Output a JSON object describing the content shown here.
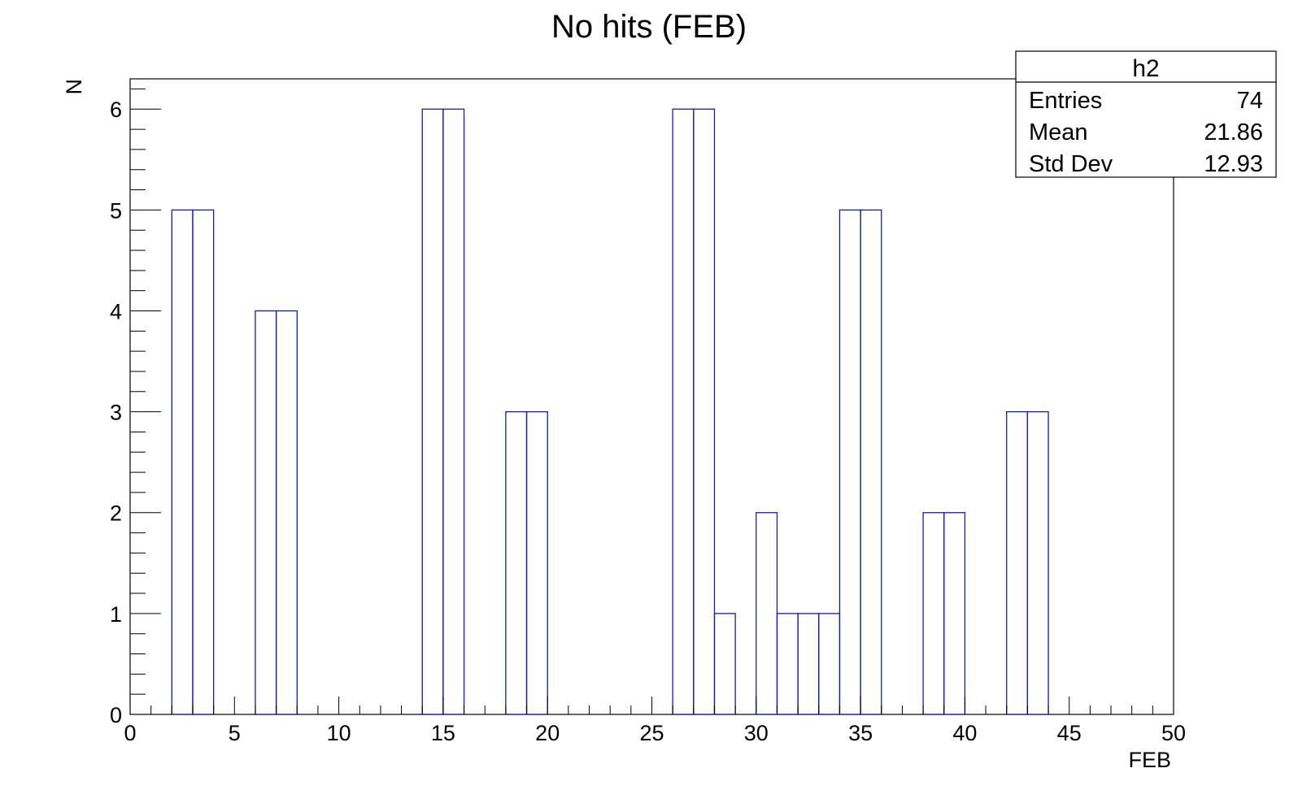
{
  "chart_data": {
    "type": "histogram",
    "title": "No hits (FEB)",
    "xlabel": "FEB",
    "ylabel": "N",
    "xlim": [
      0,
      50
    ],
    "ylim": [
      0,
      6.3
    ],
    "bin_width": 1,
    "x_ticks": [
      "0",
      "5",
      "10",
      "15",
      "20",
      "25",
      "30",
      "35",
      "40",
      "45",
      "50"
    ],
    "y_ticks": [
      "0",
      "1",
      "2",
      "3",
      "4",
      "5",
      "6"
    ],
    "bins": [
      {
        "low": 2,
        "high": 3,
        "value": 5
      },
      {
        "low": 3,
        "high": 4,
        "value": 5
      },
      {
        "low": 6,
        "high": 7,
        "value": 4
      },
      {
        "low": 7,
        "high": 8,
        "value": 4
      },
      {
        "low": 14,
        "high": 15,
        "value": 6
      },
      {
        "low": 15,
        "high": 16,
        "value": 6
      },
      {
        "low": 18,
        "high": 19,
        "value": 3
      },
      {
        "low": 19,
        "high": 20,
        "value": 3
      },
      {
        "low": 26,
        "high": 27,
        "value": 6
      },
      {
        "low": 27,
        "high": 28,
        "value": 6
      },
      {
        "low": 28,
        "high": 29,
        "value": 1
      },
      {
        "low": 30,
        "high": 31,
        "value": 2
      },
      {
        "low": 31,
        "high": 32,
        "value": 1
      },
      {
        "low": 32,
        "high": 33,
        "value": 1
      },
      {
        "low": 33,
        "high": 34,
        "value": 1
      },
      {
        "low": 34,
        "high": 35,
        "value": 5
      },
      {
        "low": 35,
        "high": 36,
        "value": 5
      },
      {
        "low": 38,
        "high": 39,
        "value": 2
      },
      {
        "low": 39,
        "high": 40,
        "value": 2
      },
      {
        "low": 42,
        "high": 43,
        "value": 3
      },
      {
        "low": 43,
        "high": 44,
        "value": 3
      }
    ],
    "line_color": "#1a1aa8",
    "stats_box": {
      "name": "h2",
      "rows": [
        {
          "label": "Entries",
          "value": "74"
        },
        {
          "label": "Mean",
          "value": "21.86"
        },
        {
          "label": "Std Dev",
          "value": "12.93"
        }
      ],
      "placement": "top-right"
    }
  }
}
